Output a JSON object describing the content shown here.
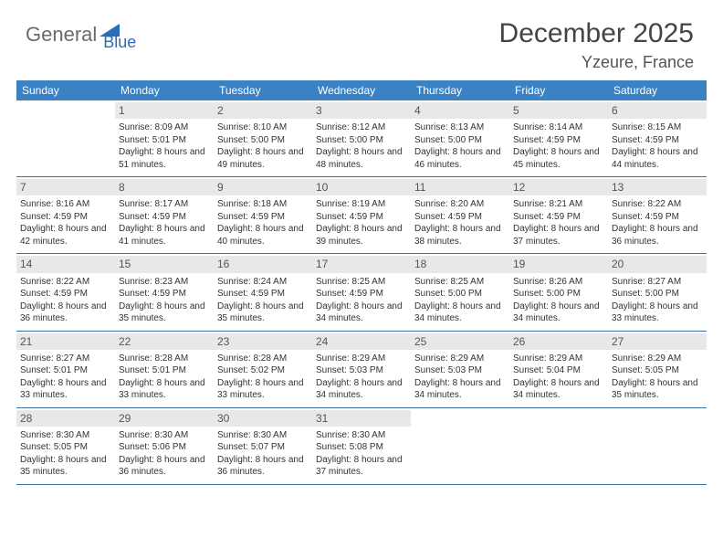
{
  "logo": {
    "text1": "General",
    "text2": "Blue"
  },
  "header": {
    "title": "December 2025",
    "subtitle": "Yzeure, France"
  },
  "colors": {
    "weekday_bg": "#3b82c4",
    "weekday_fg": "#ffffff",
    "daynum_bg": "#e8e8e8",
    "row_border": "#3b6fa3",
    "text": "#333333"
  },
  "weekdays": [
    "Sunday",
    "Monday",
    "Tuesday",
    "Wednesday",
    "Thursday",
    "Friday",
    "Saturday"
  ],
  "weeks": [
    [
      null,
      {
        "n": "1",
        "sr": "8:09 AM",
        "ss": "5:01 PM",
        "dl": "8 hours and 51 minutes."
      },
      {
        "n": "2",
        "sr": "8:10 AM",
        "ss": "5:00 PM",
        "dl": "8 hours and 49 minutes."
      },
      {
        "n": "3",
        "sr": "8:12 AM",
        "ss": "5:00 PM",
        "dl": "8 hours and 48 minutes."
      },
      {
        "n": "4",
        "sr": "8:13 AM",
        "ss": "5:00 PM",
        "dl": "8 hours and 46 minutes."
      },
      {
        "n": "5",
        "sr": "8:14 AM",
        "ss": "4:59 PM",
        "dl": "8 hours and 45 minutes."
      },
      {
        "n": "6",
        "sr": "8:15 AM",
        "ss": "4:59 PM",
        "dl": "8 hours and 44 minutes."
      }
    ],
    [
      {
        "n": "7",
        "sr": "8:16 AM",
        "ss": "4:59 PM",
        "dl": "8 hours and 42 minutes."
      },
      {
        "n": "8",
        "sr": "8:17 AM",
        "ss": "4:59 PM",
        "dl": "8 hours and 41 minutes."
      },
      {
        "n": "9",
        "sr": "8:18 AM",
        "ss": "4:59 PM",
        "dl": "8 hours and 40 minutes."
      },
      {
        "n": "10",
        "sr": "8:19 AM",
        "ss": "4:59 PM",
        "dl": "8 hours and 39 minutes."
      },
      {
        "n": "11",
        "sr": "8:20 AM",
        "ss": "4:59 PM",
        "dl": "8 hours and 38 minutes."
      },
      {
        "n": "12",
        "sr": "8:21 AM",
        "ss": "4:59 PM",
        "dl": "8 hours and 37 minutes."
      },
      {
        "n": "13",
        "sr": "8:22 AM",
        "ss": "4:59 PM",
        "dl": "8 hours and 36 minutes."
      }
    ],
    [
      {
        "n": "14",
        "sr": "8:22 AM",
        "ss": "4:59 PM",
        "dl": "8 hours and 36 minutes."
      },
      {
        "n": "15",
        "sr": "8:23 AM",
        "ss": "4:59 PM",
        "dl": "8 hours and 35 minutes."
      },
      {
        "n": "16",
        "sr": "8:24 AM",
        "ss": "4:59 PM",
        "dl": "8 hours and 35 minutes."
      },
      {
        "n": "17",
        "sr": "8:25 AM",
        "ss": "4:59 PM",
        "dl": "8 hours and 34 minutes."
      },
      {
        "n": "18",
        "sr": "8:25 AM",
        "ss": "5:00 PM",
        "dl": "8 hours and 34 minutes."
      },
      {
        "n": "19",
        "sr": "8:26 AM",
        "ss": "5:00 PM",
        "dl": "8 hours and 34 minutes."
      },
      {
        "n": "20",
        "sr": "8:27 AM",
        "ss": "5:00 PM",
        "dl": "8 hours and 33 minutes."
      }
    ],
    [
      {
        "n": "21",
        "sr": "8:27 AM",
        "ss": "5:01 PM",
        "dl": "8 hours and 33 minutes."
      },
      {
        "n": "22",
        "sr": "8:28 AM",
        "ss": "5:01 PM",
        "dl": "8 hours and 33 minutes."
      },
      {
        "n": "23",
        "sr": "8:28 AM",
        "ss": "5:02 PM",
        "dl": "8 hours and 33 minutes."
      },
      {
        "n": "24",
        "sr": "8:29 AM",
        "ss": "5:03 PM",
        "dl": "8 hours and 34 minutes."
      },
      {
        "n": "25",
        "sr": "8:29 AM",
        "ss": "5:03 PM",
        "dl": "8 hours and 34 minutes."
      },
      {
        "n": "26",
        "sr": "8:29 AM",
        "ss": "5:04 PM",
        "dl": "8 hours and 34 minutes."
      },
      {
        "n": "27",
        "sr": "8:29 AM",
        "ss": "5:05 PM",
        "dl": "8 hours and 35 minutes."
      }
    ],
    [
      {
        "n": "28",
        "sr": "8:30 AM",
        "ss": "5:05 PM",
        "dl": "8 hours and 35 minutes."
      },
      {
        "n": "29",
        "sr": "8:30 AM",
        "ss": "5:06 PM",
        "dl": "8 hours and 36 minutes."
      },
      {
        "n": "30",
        "sr": "8:30 AM",
        "ss": "5:07 PM",
        "dl": "8 hours and 36 minutes."
      },
      {
        "n": "31",
        "sr": "8:30 AM",
        "ss": "5:08 PM",
        "dl": "8 hours and 37 minutes."
      },
      null,
      null,
      null
    ]
  ],
  "labels": {
    "sunrise": "Sunrise:",
    "sunset": "Sunset:",
    "daylight": "Daylight:"
  }
}
